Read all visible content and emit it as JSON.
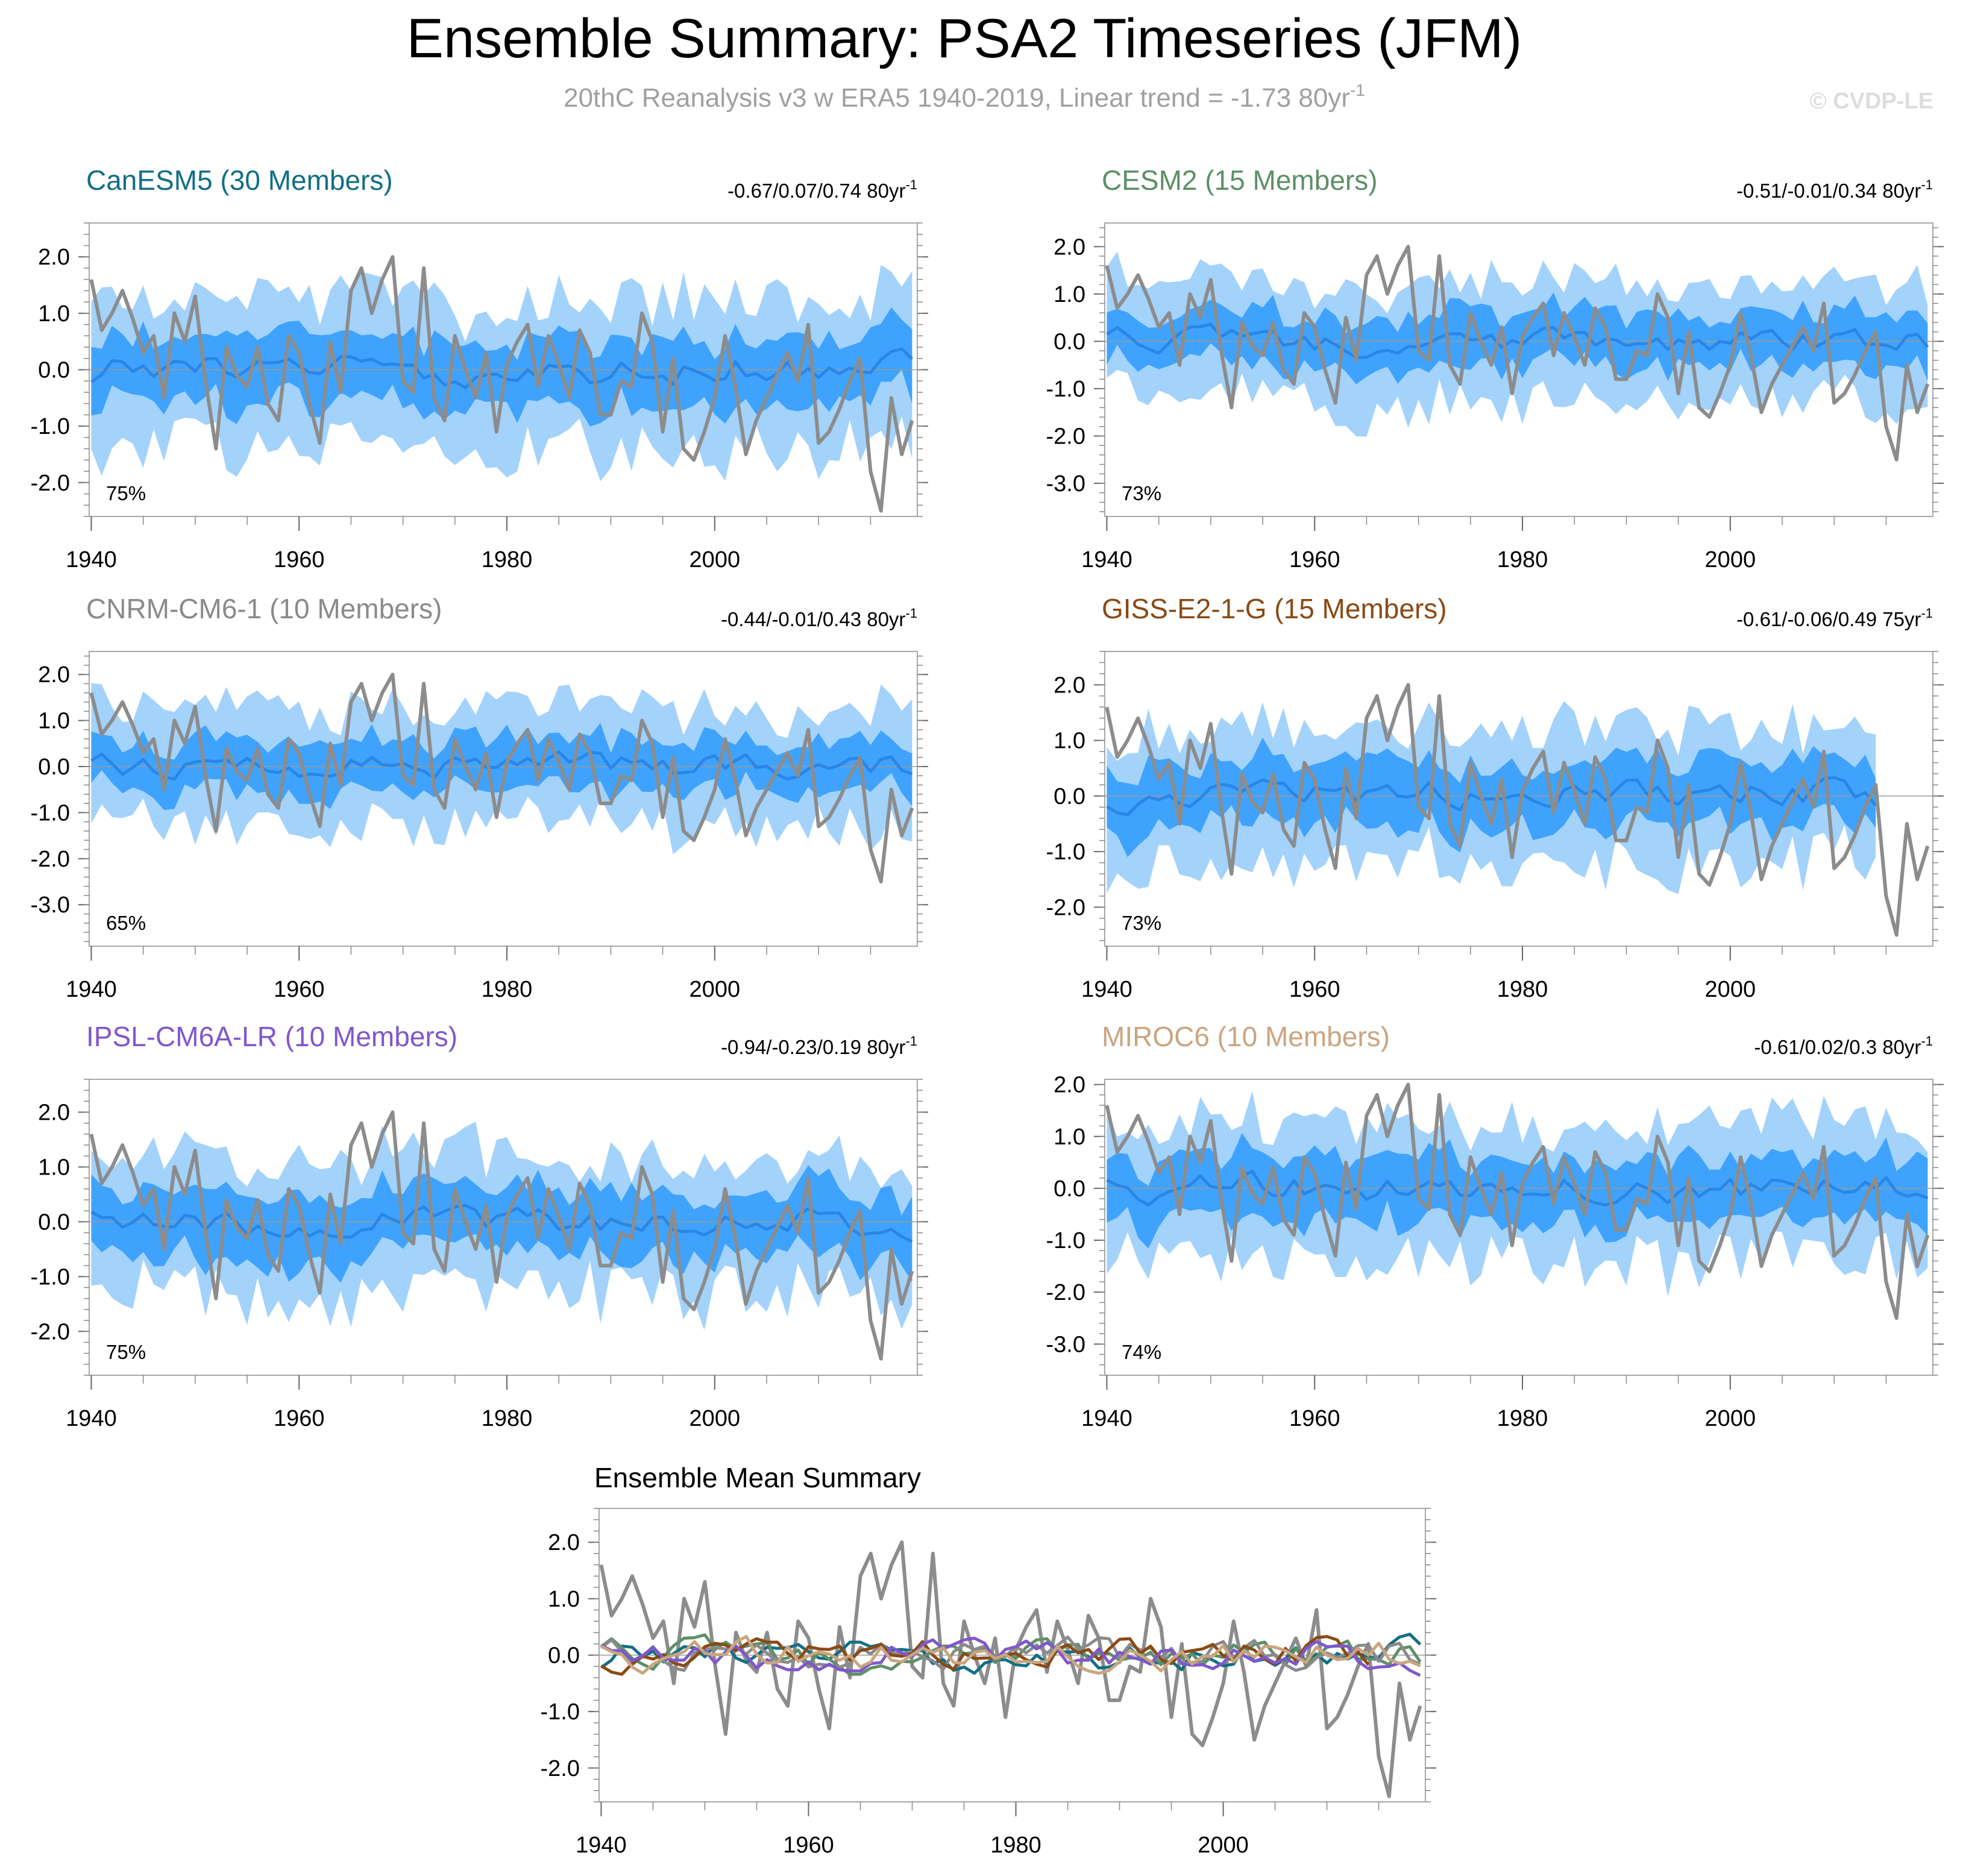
{
  "figure": {
    "title": "Ensemble Summary: PSA2 Timeseries (JFM)",
    "subtitle_main": "20thC Reanalysis v3 w ERA5 1940-2019, Linear trend = -1.73 80yr",
    "subtitle_sup": "-1",
    "watermark": "© CVDP-LE"
  },
  "colors": {
    "outer_band": "#a3d2fb",
    "inner_band": "#3fa3fd",
    "ens_mean_line": "#2a86e6",
    "obs_line": "#8c8c8c",
    "zero_line": "#9a9a9a",
    "frame": "#a8a8a8",
    "subtitle": "#a0a0a0",
    "watermark": "#dddddd"
  },
  "chart_data": [
    {
      "type": "area",
      "title": "CanESM5 (30 Members)",
      "title_color": "#136e85",
      "trend_text": "-0.67/0.07/0.74 80yr",
      "trend_sup": "-1",
      "percent_label": "75%",
      "x": [
        1940,
        2019
      ],
      "xticks": [
        1940,
        1960,
        1980,
        2000
      ],
      "yticks": [
        2.0,
        1.0,
        0.0,
        -1.0,
        -2.0
      ],
      "ylim": [
        -2.6,
        2.6
      ],
      "seed": 11,
      "outer_half_width": 1.25,
      "inner_half_width": 0.6
    },
    {
      "type": "area",
      "title": "CESM2 (15 Members)",
      "title_color": "#5d8f67",
      "trend_text": "-0.51/-0.01/0.34 80yr",
      "trend_sup": "-1",
      "percent_label": "73%",
      "x": [
        1940,
        2019
      ],
      "xticks": [
        1940,
        1960,
        1980,
        2000
      ],
      "yticks": [
        2.0,
        1.0,
        0.0,
        -1.0,
        -2.0,
        -3.0
      ],
      "ylim": [
        -3.7,
        2.5
      ],
      "seed": 23,
      "outer_half_width": 1.2,
      "inner_half_width": 0.55
    },
    {
      "type": "area",
      "title": "CNRM-CM6-1 (10 Members)",
      "title_color": "#8a8a8a",
      "trend_text": "-0.44/-0.01/0.43 80yr",
      "trend_sup": "-1",
      "percent_label": "65%",
      "x": [
        1940,
        2019
      ],
      "xticks": [
        1940,
        1960,
        1980,
        2000
      ],
      "yticks": [
        2.0,
        1.0,
        0.0,
        -1.0,
        -2.0,
        -3.0
      ],
      "ylim": [
        -3.9,
        2.5
      ],
      "seed": 37,
      "outer_half_width": 1.25,
      "inner_half_width": 0.55
    },
    {
      "type": "area",
      "title": "GISS-E2-1-G (15 Members)",
      "title_color": "#8a4a14",
      "trend_text": "-0.61/-0.06/0.49 75yr",
      "trend_sup": "-1",
      "percent_label": "73%",
      "x": [
        1940,
        2014
      ],
      "xticks": [
        1940,
        1960,
        1980,
        2000
      ],
      "yticks": [
        2.0,
        1.0,
        0.0,
        -1.0,
        -2.0
      ],
      "ylim": [
        -2.7,
        2.6
      ],
      "seed": 41,
      "outer_half_width": 1.2,
      "inner_half_width": 0.55
    },
    {
      "type": "area",
      "title": "IPSL-CM6A-LR (10 Members)",
      "title_color": "#7f57cc",
      "trend_text": "-0.94/-0.23/0.19 80yr",
      "trend_sup": "-1",
      "percent_label": "75%",
      "x": [
        1940,
        2019
      ],
      "xticks": [
        1940,
        1960,
        1980,
        2000
      ],
      "yticks": [
        2.0,
        1.0,
        0.0,
        -1.0,
        -2.0
      ],
      "ylim": [
        -2.8,
        2.6
      ],
      "seed": 53,
      "outer_half_width": 1.2,
      "inner_half_width": 0.6
    },
    {
      "type": "area",
      "title": "MIROC6 (10 Members)",
      "title_color": "#c9a57f",
      "trend_text": "-0.61/0.02/0.3 80yr",
      "trend_sup": "-1",
      "percent_label": "74%",
      "x": [
        1940,
        2019
      ],
      "xticks": [
        1940,
        1960,
        1980,
        2000
      ],
      "yticks": [
        2.0,
        1.0,
        0.0,
        -1.0,
        -2.0,
        -3.0
      ],
      "ylim": [
        -3.6,
        2.1
      ],
      "seed": 67,
      "outer_half_width": 1.25,
      "inner_half_width": 0.6
    },
    {
      "type": "line",
      "title": "Ensemble Mean Summary",
      "x": [
        1940,
        2019
      ],
      "xticks": [
        1940,
        1960,
        1980,
        2000
      ],
      "yticks": [
        2.0,
        1.0,
        0.0,
        -1.0,
        -2.0
      ],
      "ylim": [
        -2.6,
        2.6
      ],
      "series": [
        {
          "name": "CanESM5",
          "color": "#136e85",
          "seed": 11
        },
        {
          "name": "CESM2",
          "color": "#5d8f67",
          "seed": 23
        },
        {
          "name": "CNRM-CM6-1",
          "color": "#8a8a8a",
          "seed": 37
        },
        {
          "name": "GISS-E2-1-G",
          "color": "#8a4a14",
          "seed": 41,
          "x": [
            1940,
            2014
          ]
        },
        {
          "name": "IPSL-CM6A-LR",
          "color": "#7f57cc",
          "seed": 53
        },
        {
          "name": "MIROC6",
          "color": "#c9a57f",
          "seed": 67
        }
      ]
    }
  ],
  "observations": {
    "name": "20thC Reanalysis v3 w ERA5",
    "start_year": 1940,
    "values": [
      1.6,
      0.7,
      1.0,
      1.4,
      0.9,
      0.3,
      0.6,
      -0.5,
      1.0,
      0.5,
      1.3,
      -0.2,
      -1.4,
      0.4,
      -0.1,
      -0.3,
      0.4,
      -0.6,
      -0.9,
      0.6,
      0.3,
      -0.6,
      -1.3,
      0.5,
      -0.4,
      1.4,
      1.8,
      1.0,
      1.6,
      2.0,
      -0.2,
      -0.4,
      1.8,
      -0.5,
      -0.9,
      0.6,
      0.0,
      -0.5,
      0.3,
      -1.1,
      0.1,
      0.5,
      0.8,
      -0.3,
      0.6,
      0.1,
      -0.5,
      0.7,
      0.3,
      -0.8,
      -0.8,
      -0.2,
      -0.3,
      1.0,
      0.5,
      -1.1,
      0.2,
      -1.4,
      -1.6,
      -1.1,
      -0.5,
      0.6,
      -0.3,
      -1.5,
      -0.9,
      -0.5,
      -0.1,
      0.3,
      -0.2,
      0.8,
      -1.3,
      -1.1,
      -0.7,
      -0.2,
      0.2,
      -1.8,
      -2.5,
      -0.5,
      -1.5,
      -0.9
    ]
  }
}
